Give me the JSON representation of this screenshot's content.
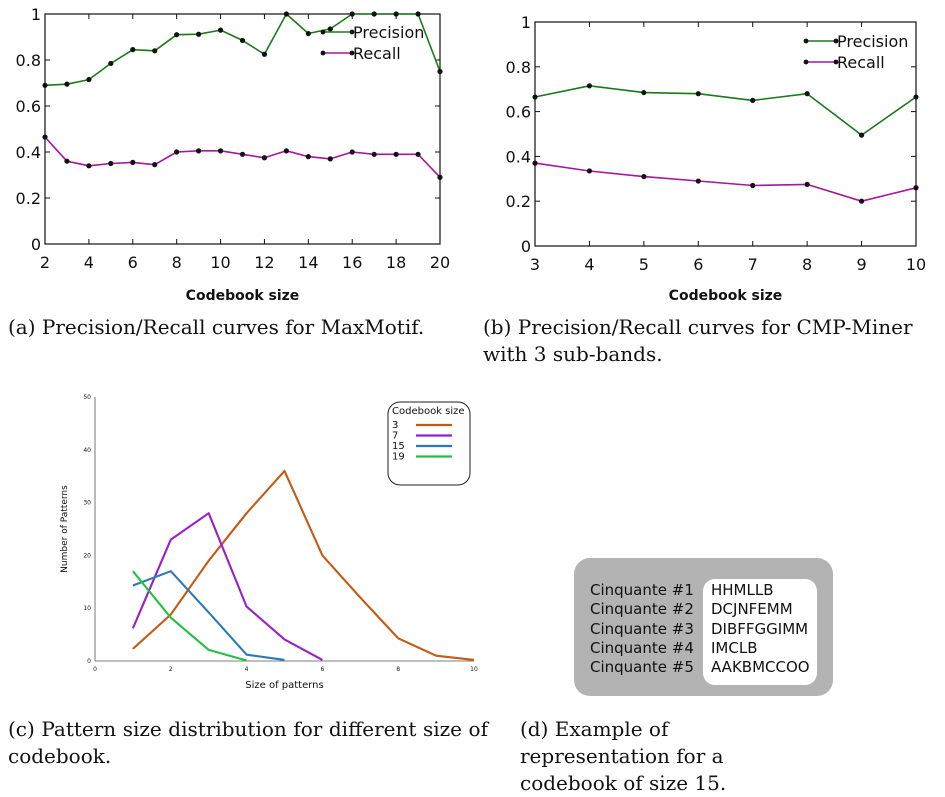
{
  "chart_data": [
    {
      "type": "line",
      "id": "a",
      "xlabel": "Codebook size",
      "ylabel": "",
      "xlim": [
        2,
        20
      ],
      "ylim": [
        0,
        1
      ],
      "xticks": [
        2,
        4,
        6,
        8,
        10,
        12,
        14,
        16,
        18,
        20
      ],
      "yticks": [
        0,
        0.2,
        0.4,
        0.6,
        0.8,
        1
      ],
      "ytick_labels": [
        "0",
        "0.2",
        "0.4",
        "0.6",
        "0.8",
        "1"
      ],
      "legend_position": "top-right",
      "x": [
        2,
        3,
        4,
        5,
        6,
        7,
        8,
        9,
        10,
        11,
        12,
        13,
        14,
        15,
        16,
        17,
        18,
        19,
        20
      ],
      "series": [
        {
          "name": "Precision",
          "color": "#1a7a1a",
          "values": [
            0.69,
            0.695,
            0.715,
            0.785,
            0.845,
            0.84,
            0.91,
            0.912,
            0.93,
            0.885,
            0.825,
            1.0,
            0.915,
            0.935,
            1.0,
            1.0,
            1.0,
            1.0,
            0.75
          ]
        },
        {
          "name": "Recall",
          "color": "#a6169e",
          "values": [
            0.465,
            0.36,
            0.34,
            0.35,
            0.355,
            0.345,
            0.4,
            0.405,
            0.405,
            0.39,
            0.375,
            0.405,
            0.38,
            0.37,
            0.4,
            0.39,
            0.39,
            0.39,
            0.29
          ]
        }
      ]
    },
    {
      "type": "line",
      "id": "b",
      "xlabel": "Codebook size",
      "ylabel": "",
      "xlim": [
        3,
        10
      ],
      "ylim": [
        0,
        1
      ],
      "xticks": [
        3,
        4,
        5,
        6,
        7,
        8,
        9,
        10
      ],
      "yticks": [
        0,
        0.2,
        0.4,
        0.6,
        0.8,
        1
      ],
      "ytick_labels": [
        "0",
        "0.2",
        "0.4",
        "0.6",
        "0.8",
        "1"
      ],
      "legend_position": "top-right",
      "x": [
        3,
        4,
        5,
        6,
        7,
        8,
        9,
        10
      ],
      "series": [
        {
          "name": "Precision",
          "color": "#1a7a1a",
          "values": [
            0.665,
            0.715,
            0.685,
            0.68,
            0.65,
            0.68,
            0.495,
            0.665
          ]
        },
        {
          "name": "Recall",
          "color": "#a6169e",
          "values": [
            0.37,
            0.335,
            0.31,
            0.29,
            0.27,
            0.275,
            0.2,
            0.26
          ]
        }
      ]
    },
    {
      "type": "line",
      "id": "c",
      "xlabel": "Size of patterns",
      "ylabel": "Number of Patterns",
      "xlim": [
        0,
        10
      ],
      "ylim": [
        0,
        50
      ],
      "xticks": [
        0,
        2,
        4,
        6,
        8,
        10
      ],
      "yticks": [
        0,
        10,
        20,
        30,
        40,
        50
      ],
      "legend_title": "Codebook size",
      "legend_position": "top-right",
      "series": [
        {
          "name": "3",
          "color": "#c45a12",
          "x": [
            1,
            2,
            3,
            4,
            5,
            6,
            7,
            8,
            9,
            10
          ],
          "values": [
            2.3,
            8.8,
            19.0,
            28.0,
            36.0,
            20.0,
            12.0,
            4.3,
            1.0,
            0.2
          ]
        },
        {
          "name": "7",
          "color": "#9b1fc8",
          "x": [
            1,
            2,
            3,
            4,
            5,
            6
          ],
          "values": [
            6.2,
            23.0,
            28.0,
            10.3,
            4.1,
            0.2
          ]
        },
        {
          "name": "15",
          "color": "#2a7ab8",
          "x": [
            1,
            2,
            3,
            4,
            5
          ],
          "values": [
            14.3,
            17.0,
            9.2,
            1.2,
            0.2
          ]
        },
        {
          "name": "19",
          "color": "#22c043",
          "x": [
            1,
            2,
            3,
            4
          ],
          "values": [
            17.0,
            8.2,
            2.1,
            0.1
          ]
        }
      ]
    }
  ],
  "captions": {
    "a": "(a) Precision/Recall curves for MaxMotif.",
    "b": "(b) Precision/Recall curves for CMP-Miner with 3 sub-bands.",
    "c": "(c) Pattern size distribution for different size of codebook.",
    "d": "(d) Example of representation for a codebook of size 15."
  },
  "codebook_example": {
    "labels": [
      "Cinquante #1",
      "Cinquante #2",
      "Cinquante #3",
      "Cinquante #4",
      "Cinquante #5"
    ],
    "values": [
      "HHMLLB",
      "DCJNFEMM",
      "DIBFFGGIMM",
      "IMCLB",
      "AAKBMCCOO"
    ]
  }
}
